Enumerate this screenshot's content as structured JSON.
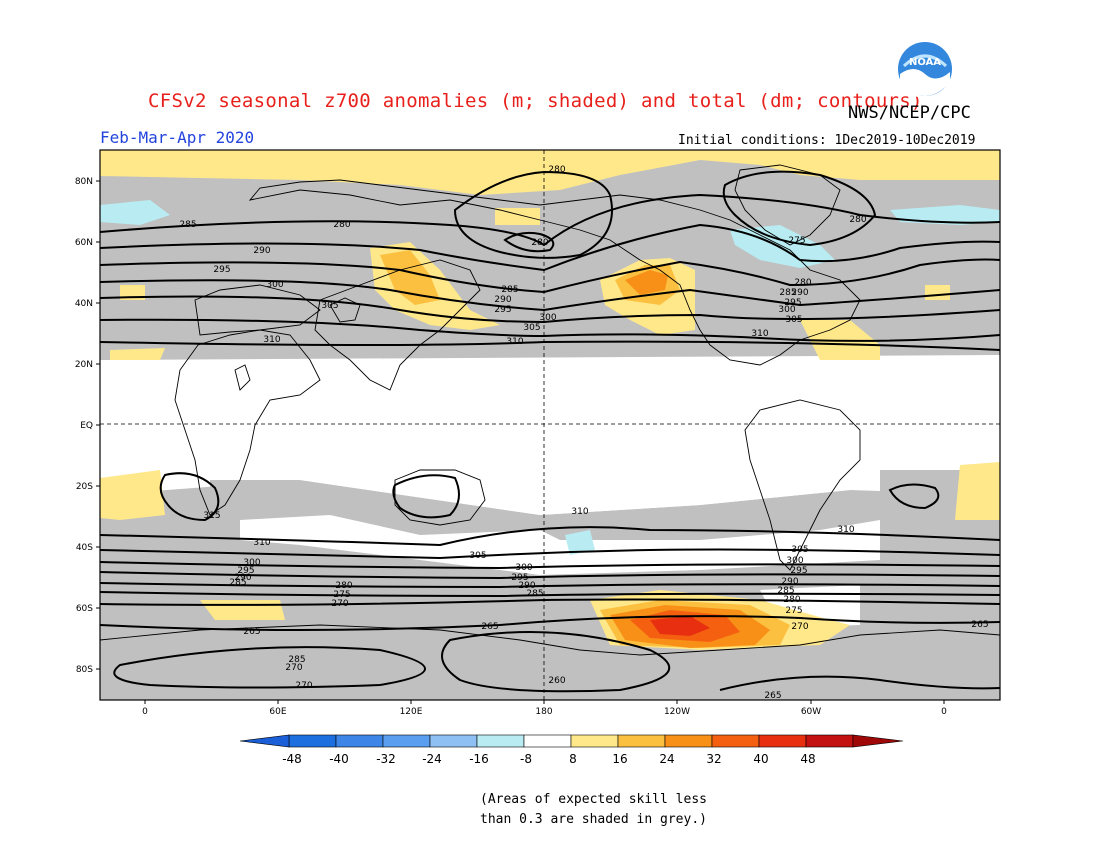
{
  "header": {
    "title": "CFSv2 seasonal z700 anomalies (m; shaded) and total (dm; contours)",
    "agency": "NWS/NCEP/CPC",
    "logo_text": "NOAA",
    "period": "Feb-Mar-Apr 2020",
    "initial_conditions": "Initial conditions: 1Dec2019-10Dec2019"
  },
  "map": {
    "lat_labels": [
      "80N",
      "60N",
      "40N",
      "20N",
      "EQ",
      "20S",
      "40S",
      "60S",
      "80S"
    ],
    "lon_labels": [
      "0",
      "60E",
      "120E",
      "180",
      "120W",
      "60W",
      "0"
    ],
    "contour_labels": {
      "north": [
        "280",
        "280",
        "280",
        "285",
        "290",
        "295",
        "300",
        "305",
        "310",
        "285",
        "290",
        "295",
        "300",
        "305",
        "310",
        "280",
        "275",
        "280",
        "285",
        "290",
        "295",
        "300",
        "305",
        "310"
      ],
      "tropics": [
        "315",
        "310",
        "310"
      ],
      "south": [
        "310",
        "300",
        "295",
        "290",
        "285",
        "280",
        "275",
        "270",
        "265",
        "285",
        "270",
        "270",
        "305",
        "300",
        "295",
        "290",
        "285",
        "265",
        "260",
        "305",
        "300",
        "295",
        "290",
        "285",
        "280",
        "275",
        "270",
        "265",
        "265"
      ]
    },
    "colors": {
      "grey_skill_mask": "#c0c0c0",
      "contour": "#000000"
    }
  },
  "colorbar": {
    "ticks": [
      "-48",
      "-40",
      "-32",
      "-24",
      "-16",
      "-8",
      "8",
      "16",
      "24",
      "32",
      "40",
      "48"
    ],
    "colors": [
      "#1d6fe0",
      "#3d86e8",
      "#5a9eef",
      "#8ec0f4",
      "#b8ecf2",
      "#ffffff",
      "#ffe88a",
      "#fcc040",
      "#f89018",
      "#f56010",
      "#e83010",
      "#c31010"
    ],
    "low_end_color": "#1a5fd8",
    "high_end_color": "#a00808"
  },
  "footer": {
    "note_line1": "(Areas of expected skill less",
    "note_line2": "than 0.3 are shaded in grey.)"
  }
}
